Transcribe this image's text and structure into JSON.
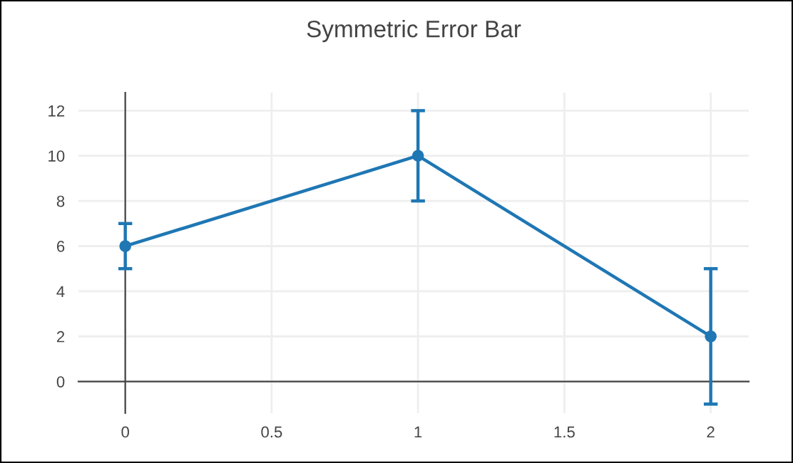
{
  "chart_data": {
    "type": "line",
    "title": "Symmetric Error Bar",
    "x": [
      0,
      1,
      2
    ],
    "series": [
      {
        "color": "#1f77b4",
        "values": [
          6,
          10,
          2
        ],
        "errors": [
          1,
          2,
          3
        ]
      }
    ],
    "xlim": [
      -0.16,
      2.13
    ],
    "ylim": [
      -1.4,
      12.8
    ],
    "xticks": [
      0,
      0.5,
      1,
      1.5,
      2
    ],
    "yticks": [
      0,
      2,
      4,
      6,
      8,
      10,
      12
    ],
    "grid": true,
    "marker": "circle",
    "line_style": "solid"
  }
}
